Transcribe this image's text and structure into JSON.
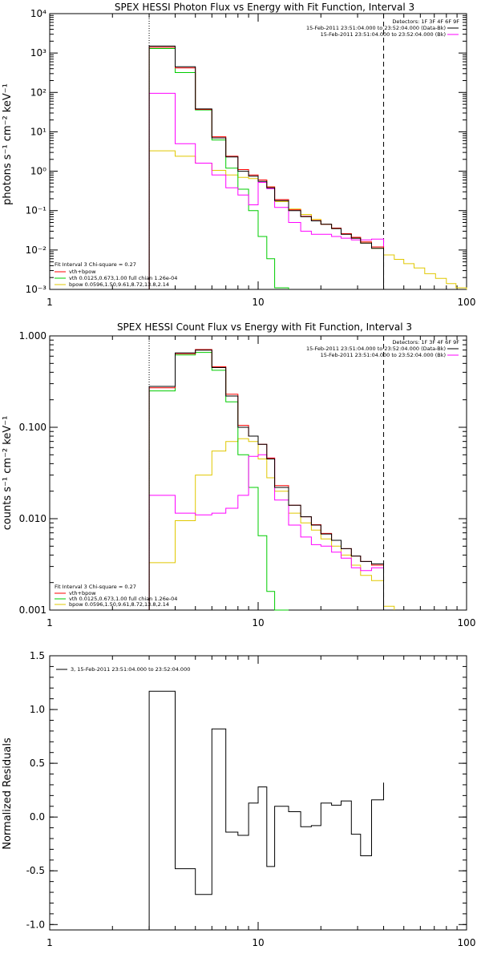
{
  "colors": {
    "total": "#000000",
    "fit": "#ff0000",
    "vth": "#00cc00",
    "bpow": "#e0c800",
    "background": "#ff00ff",
    "axis": "#000000"
  },
  "panels": {
    "photon": {
      "title": "SPEX HESSI Photon Flux vs Energy with Fit Function, Interval 3",
      "ylabel": "photons s⁻¹ cm⁻² keV⁻¹",
      "xticks": [
        "1",
        "10",
        "100"
      ],
      "yticks": [
        "10⁻³",
        "10⁻²",
        "10⁻¹",
        "10⁰",
        "10¹",
        "10²",
        "10³",
        "10⁴"
      ],
      "legend_lines": [
        "Detectors: 1F 3F 4F 6F 9F",
        "15-Feb-2011 23:51:04.000 to 23:52:04.000 (Data-Bk)",
        "15-Feb-2011 23:51:04.000 to 23:52:04.000 (Bk)"
      ],
      "fit_lines": [
        "Fit Interval 3   Chi-square = 0.27",
        "vth+bpow",
        "vth 0.0125,0.673,1.00  full chian 1.26e-04",
        "bpow 0.0596,1.50,9.61,8.72,13.8,2.14"
      ]
    },
    "count": {
      "title": "SPEX HESSI Count Flux vs Energy with Fit Function, Interval 3",
      "ylabel": "counts s⁻¹ cm⁻² keV⁻¹",
      "xticks": [
        "1",
        "10",
        "100"
      ],
      "yticks": [
        "0.001",
        "0.010",
        "0.100",
        "1.000"
      ],
      "legend_lines": [
        "Detectors: 1F 3F 4F 6F 9F",
        "15-Feb-2011 23:51:04.000 to 23:52:04.000 (Data-Bk)",
        "15-Feb-2011 23:51:04.000 to 23:52:04.000 (Bk)"
      ],
      "fit_lines": [
        "Fit Interval 3   Chi-square = 0.27",
        "vth+bpow",
        "vth 0.0125,0.673,1.00  full chian 1.26e-04",
        "bpow 0.0596,1.50,9.61,8.72,13.8,2.14"
      ]
    },
    "residual": {
      "ylabel": "Normalized Residuals",
      "xticks": [
        "1",
        "10",
        "100"
      ],
      "yticks": [
        "-1.0",
        "-0.5",
        "0.0",
        "0.5",
        "1.0",
        "1.5"
      ],
      "legend_line": "3, 15-Feb-2011 23:51:04.000 to 23:52:04.000"
    }
  },
  "chart_data": [
    {
      "type": "line",
      "title": "SPEX HESSI Photon Flux vs Energy with Fit Function, Interval 3",
      "ylabel": "photons s⁻¹ cm⁻² keV⁻¹",
      "xscale": "log",
      "yscale": "log",
      "xlim": [
        1,
        100
      ],
      "ylim": [
        0.001,
        10000
      ],
      "vlines": [
        {
          "x": 3,
          "style": "dotted"
        },
        {
          "x": 40,
          "style": "dashed"
        }
      ],
      "bin_edges": [
        3,
        4,
        5,
        6,
        7,
        8,
        9,
        10,
        11,
        12,
        14,
        16,
        18,
        20,
        22.5,
        25,
        28,
        31,
        35,
        40,
        45,
        50,
        56,
        63,
        71,
        80,
        89,
        100
      ],
      "series": [
        {
          "key": "total",
          "values": [
            1500,
            450,
            38,
            7,
            2.3,
            1.0,
            0.75,
            0.55,
            0.38,
            0.18,
            0.1,
            0.07,
            0.055,
            0.045,
            0.035,
            0.025,
            0.02,
            0.015,
            0.011,
            null,
            null,
            null,
            null,
            null,
            null,
            null,
            null
          ]
        },
        {
          "key": "fit",
          "values": [
            1400,
            420,
            37,
            7.5,
            2.4,
            1.1,
            0.8,
            0.6,
            0.4,
            0.19,
            0.105,
            0.072,
            0.056,
            0.045,
            0.036,
            0.026,
            0.021,
            0.016,
            0.012,
            null,
            null,
            null,
            null,
            null,
            null,
            null,
            null
          ]
        },
        {
          "key": "vth",
          "values": [
            1300,
            320,
            36,
            6.2,
            1.2,
            0.35,
            0.1,
            0.022,
            0.006,
            0.0011,
            null,
            null,
            null,
            null,
            null,
            null,
            null,
            null,
            null,
            null,
            null,
            null,
            null,
            null,
            null,
            null,
            null
          ]
        },
        {
          "key": "bpow",
          "values": [
            3.3,
            2.4,
            1.6,
            1.05,
            0.8,
            0.7,
            0.65,
            0.6,
            0.4,
            0.17,
            0.11,
            0.08,
            0.06,
            0.045,
            0.035,
            0.026,
            0.02,
            0.015,
            0.011,
            0.0075,
            0.0058,
            0.0045,
            0.0035,
            0.0025,
            0.0019,
            0.0014,
            0.0011
          ]
        },
        {
          "key": "background",
          "values": [
            95,
            5,
            1.6,
            0.8,
            0.38,
            0.25,
            0.14,
            0.52,
            0.36,
            0.12,
            0.05,
            0.03,
            0.025,
            0.025,
            0.022,
            0.02,
            0.018,
            0.018,
            0.019,
            null,
            null,
            null,
            null,
            null,
            null,
            null,
            null
          ]
        }
      ]
    },
    {
      "type": "line",
      "title": "SPEX HESSI Count Flux vs Energy with Fit Function, Interval 3",
      "ylabel": "counts s⁻¹ cm⁻² keV⁻¹",
      "xscale": "log",
      "yscale": "log",
      "xlim": [
        1,
        100
      ],
      "ylim": [
        0.001,
        1
      ],
      "vlines": [
        {
          "x": 3,
          "style": "dotted"
        },
        {
          "x": 40,
          "style": "dashed"
        }
      ],
      "bin_edges": [
        3,
        4,
        5,
        6,
        7,
        8,
        9,
        10,
        11,
        12,
        14,
        16,
        18,
        20,
        22.5,
        25,
        28,
        31,
        35,
        40,
        45
      ],
      "series": [
        {
          "key": "total",
          "values": [
            0.28,
            0.65,
            0.7,
            0.45,
            0.22,
            0.1,
            0.08,
            0.065,
            0.045,
            0.022,
            0.014,
            0.0105,
            0.0085,
            0.0068,
            0.0058,
            0.0047,
            0.0039,
            0.0034,
            0.0032,
            null
          ]
        },
        {
          "key": "fit",
          "values": [
            0.27,
            0.64,
            0.71,
            0.46,
            0.23,
            0.105,
            0.08,
            0.065,
            0.046,
            0.023,
            0.014,
            0.0105,
            0.0086,
            0.0069,
            0.0058,
            0.0047,
            0.0039,
            0.0034,
            0.0031,
            null
          ]
        },
        {
          "key": "vth",
          "values": [
            0.25,
            0.62,
            0.66,
            0.42,
            0.19,
            0.05,
            0.022,
            0.0065,
            0.0016,
            0.0008,
            null,
            null,
            null,
            null,
            null,
            null,
            null,
            null,
            null,
            null
          ]
        },
        {
          "key": "bpow",
          "values": [
            0.0033,
            0.0095,
            0.03,
            0.055,
            0.07,
            0.075,
            0.07,
            0.045,
            0.028,
            0.02,
            0.0115,
            0.009,
            0.0075,
            0.006,
            0.005,
            0.004,
            0.0031,
            0.0024,
            0.0021,
            0.0011
          ]
        },
        {
          "key": "background",
          "values": [
            0.018,
            0.0115,
            0.011,
            0.0115,
            0.013,
            0.018,
            0.048,
            0.05,
            0.046,
            0.016,
            0.0085,
            0.0063,
            0.0052,
            0.005,
            0.0043,
            0.0037,
            0.0029,
            0.0027,
            0.0029,
            null
          ]
        }
      ]
    },
    {
      "type": "line",
      "ylabel": "Normalized Residuals",
      "xscale": "log",
      "xlim": [
        1,
        100
      ],
      "ylim": [
        -1.05,
        1.5
      ],
      "bin_edges": [
        3,
        4,
        5,
        6,
        7,
        8,
        9,
        10,
        11,
        12,
        14,
        16,
        18,
        20,
        22.5,
        25,
        28,
        31,
        35,
        40
      ],
      "series": [
        {
          "key": "total",
          "name": "3, 15-Feb-2011 23:51:04.000 to 23:52:04.000",
          "values": [
            1.17,
            -0.48,
            -0.72,
            0.82,
            -0.14,
            -0.17,
            0.13,
            0.28,
            -0.46,
            0.1,
            0.05,
            -0.09,
            -0.08,
            0.13,
            0.11,
            0.15,
            -0.16,
            -0.36,
            0.16,
            0.32
          ]
        }
      ]
    }
  ]
}
